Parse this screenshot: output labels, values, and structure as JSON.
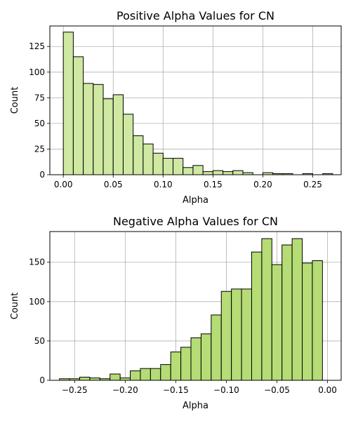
{
  "chart_data": [
    {
      "type": "bar",
      "title": "Positive Alpha Values for CN",
      "xlabel": "Alpha",
      "ylabel": "Count",
      "xlim": [
        -0.0135,
        0.2785
      ],
      "ylim": [
        0,
        145
      ],
      "xticks": [
        0.0,
        0.05,
        0.1,
        0.15,
        0.2,
        0.25
      ],
      "xtick_labels": [
        "0.00",
        "0.05",
        "0.10",
        "0.15",
        "0.20",
        "0.25"
      ],
      "yticks": [
        0,
        25,
        50,
        75,
        100,
        125
      ],
      "ytick_labels": [
        "0",
        "25",
        "50",
        "75",
        "100",
        "125"
      ],
      "grid": true,
      "bar_color": "#cfe8a2",
      "edge_color": "#000000",
      "bin_start": 0.0,
      "bin_width": 0.01,
      "values": [
        139,
        115,
        89,
        88,
        74,
        78,
        59,
        38,
        30,
        21,
        16,
        16,
        7,
        9,
        3,
        4,
        3,
        4,
        2,
        0,
        2,
        1,
        1,
        0,
        1,
        0,
        1
      ]
    },
    {
      "type": "bar",
      "title": "Negative Alpha Values for CN",
      "xlabel": "Alpha",
      "ylabel": "Count",
      "xlim": [
        -0.2745,
        0.0135
      ],
      "ylim": [
        0,
        189
      ],
      "xticks": [
        -0.25,
        -0.2,
        -0.15,
        -0.1,
        -0.05,
        0.0
      ],
      "xtick_labels": [
        "−0.25",
        "−0.20",
        "−0.15",
        "−0.10",
        "−0.05",
        "0.00"
      ],
      "yticks": [
        0,
        50,
        100,
        150
      ],
      "ytick_labels": [
        "0",
        "50",
        "100",
        "150"
      ],
      "grid": true,
      "bar_color": "#b5dc75",
      "edge_color": "#000000",
      "bin_start": -0.265,
      "bin_width": 0.01,
      "values": [
        2,
        2,
        4,
        3,
        2,
        8,
        3,
        12,
        15,
        15,
        20,
        36,
        42,
        54,
        59,
        83,
        113,
        116,
        116,
        163,
        180,
        147,
        172,
        180,
        149,
        152
      ]
    }
  ]
}
